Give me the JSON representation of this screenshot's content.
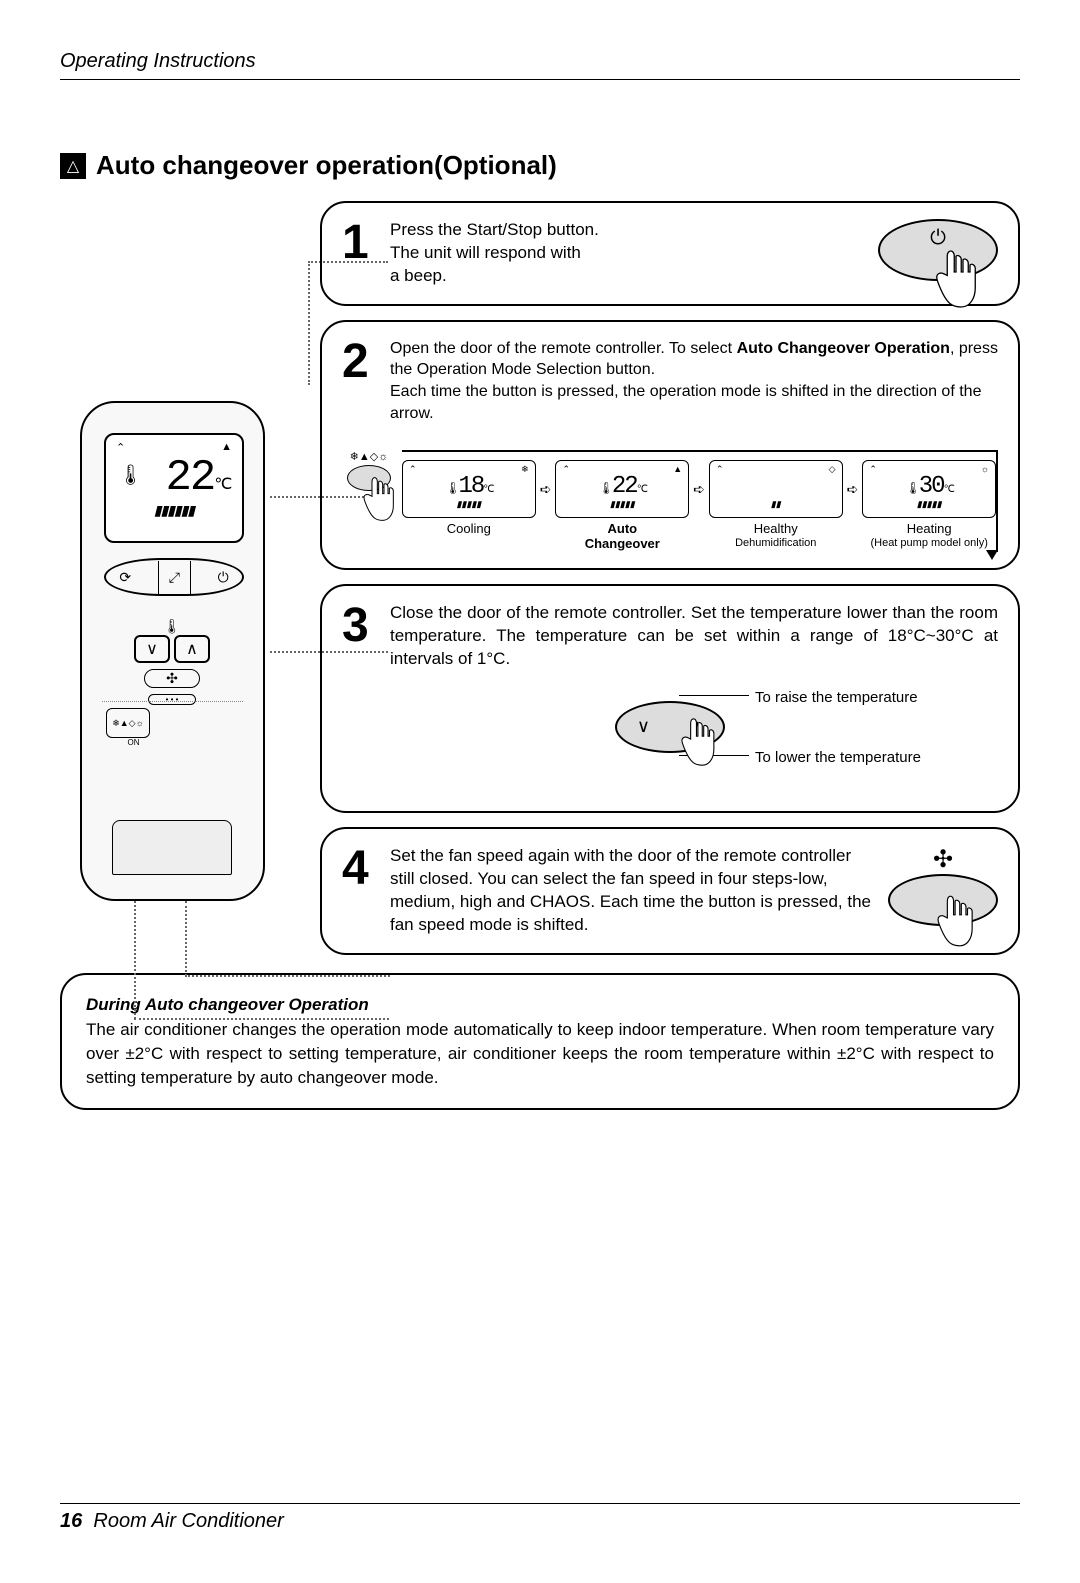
{
  "header": {
    "section": "Operating Instructions"
  },
  "title": {
    "text": "Auto changeover operation(Optional)",
    "icon": "△"
  },
  "remote": {
    "screen": {
      "signal_icon": "⌃",
      "mode_icon": "▲",
      "thermometer": "🌡",
      "temperature": "22",
      "unit": "℃",
      "bars": "▮▮▮▮▮▮"
    },
    "top_buttons": {
      "left": "⟳",
      "mid": "⤢",
      "right": "⏻"
    },
    "temp_buttons": {
      "down": "∨",
      "up": "∧",
      "icon": "🌡"
    },
    "fan_icon": "✣",
    "mode_icons": "❄▲◇☼",
    "on_label": "ON"
  },
  "step1": {
    "num": "1",
    "text": "Press the Start/Stop button.\nThe unit will respond with\na beep.",
    "btn_icon": "⏻"
  },
  "step2": {
    "num": "2",
    "text_a": "Open the door of the remote controller. To select ",
    "text_bold": "Auto Changeover Operation",
    "text_b": ", press the Operation Mode Selection button.\nEach time the button is pressed, the operation mode is shifted in the direction of the arrow.",
    "press_icons": "❄▲◇☼",
    "modes": [
      {
        "temp": "18",
        "top_icon": "❄",
        "label": "Cooling",
        "sublabel": "",
        "bold": false
      },
      {
        "temp": "22",
        "top_icon": "▲",
        "label": "Auto",
        "sublabel": "Changeover",
        "bold": true
      },
      {
        "temp": "",
        "top_icon": "◇",
        "label": "Healthy",
        "sublabel": "Dehumidification",
        "bold": false,
        "blank": false
      },
      {
        "temp": "30",
        "top_icon": "☼",
        "label": "Heating",
        "sublabel": "(Heat pump model only)",
        "bold": false
      }
    ]
  },
  "step3": {
    "num": "3",
    "text": "Close the door of the remote controller. Set the temperature lower than the room temperature. The temperature can be set within a range of 18°C~30°C at intervals of 1°C.",
    "raise": "To raise the temperature",
    "lower": "To lower the temperature"
  },
  "step4": {
    "num": "4",
    "text": "Set the fan speed again with the door of the remote controller still closed. You can select the fan speed in four steps-low, medium, high and CHAOS. Each time the button is pressed, the fan speed mode is shifted.",
    "icon": "✣"
  },
  "note": {
    "title": "During Auto changeover Operation",
    "body": "The air conditioner changes the operation mode automatically to keep indoor temperature. When room temperature vary over ±2°C with respect to setting temperature, air conditioner keeps the room temperature within ±2°C with respect to setting temperature by auto changeover mode."
  },
  "footer": {
    "page": "16",
    "label": "Room Air Conditioner"
  }
}
